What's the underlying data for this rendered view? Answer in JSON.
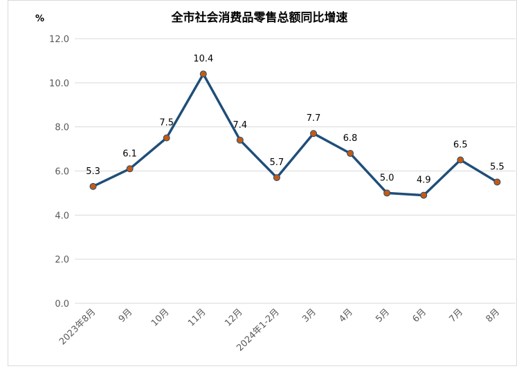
{
  "chart_data": {
    "type": "line",
    "title": "全市社会消费品零售总额同比增速",
    "unit_label": "%",
    "categories": [
      "2023年8月",
      "9月",
      "10月",
      "11月",
      "12月",
      "2024年1-2月",
      "3月",
      "4月",
      "5月",
      "6月",
      "7月",
      "8月"
    ],
    "series": [
      {
        "values": [
          5.3,
          6.1,
          7.5,
          10.4,
          7.4,
          5.7,
          7.7,
          6.8,
          5.0,
          4.9,
          6.5,
          5.5
        ]
      }
    ],
    "data_labels": [
      "5.3",
      "6.1",
      "7.5",
      "10.4",
      "7.4",
      "5.7",
      "7.7",
      "6.8",
      "5.0",
      "4.9",
      "6.5",
      "5.5"
    ],
    "y_ticks": [
      "0.0",
      "2.0",
      "4.0",
      "6.0",
      "8.0",
      "10.0",
      "12.0"
    ],
    "ylim": [
      0,
      12
    ],
    "grid": true,
    "line_color": "#1f4e79",
    "marker_color": "#c55a11",
    "grid_color": "#d9d9d9"
  }
}
